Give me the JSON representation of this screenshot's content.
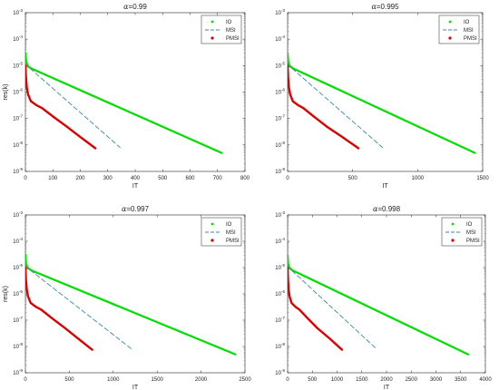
{
  "figure": {
    "background": "#ffffff"
  },
  "chart_data": [
    {
      "type": "line",
      "title_symbol": "α",
      "title_value": "=0.99",
      "xlabel": "IT",
      "ylabel": "res(k)",
      "y_scale": "log",
      "xlim": [
        0,
        800
      ],
      "xticks": [
        0,
        100,
        200,
        300,
        400,
        500,
        600,
        700,
        800
      ],
      "ylim_exp": [
        -9,
        -3
      ],
      "legend_position": "top-right",
      "series": [
        {
          "name": "IO",
          "color": "#00e000",
          "style": "dotted",
          "x": [
            0,
            3,
            8,
            15,
            25,
            715
          ],
          "y": [
            3e-05,
            1.4e-05,
            1e-05,
            8.5e-06,
            7.5e-06,
            5e-09
          ]
        },
        {
          "name": "MSI",
          "color": "#3a8aa8",
          "style": "dashed",
          "x": [
            0,
            3,
            8,
            15,
            345
          ],
          "y": [
            1.2e-05,
            9.5e-06,
            8.8e-06,
            8.2e-06,
            8e-09
          ]
        },
        {
          "name": "PMSI",
          "color": "#dd0000",
          "style": "solid",
          "x": [
            0,
            2,
            5,
            10,
            20,
            40,
            60,
            100,
            150,
            200,
            255
          ],
          "y": [
            1e-05,
            3.5e-06,
            1.5e-06,
            8e-07,
            4.5e-07,
            3.2e-07,
            2.5e-07,
            1.2e-07,
            5e-08,
            2e-08,
            7.5e-09
          ]
        }
      ]
    },
    {
      "type": "line",
      "title_symbol": "α",
      "title_value": "=0.995",
      "xlabel": "IT",
      "ylabel": "",
      "y_scale": "log",
      "xlim": [
        0,
        1500
      ],
      "xticks": [
        0,
        500,
        1000,
        1500
      ],
      "ylim_exp": [
        -9,
        -3
      ],
      "legend_position": "top-right",
      "series": [
        {
          "name": "IO",
          "color": "#00e000",
          "style": "dotted",
          "x": [
            0,
            5,
            15,
            30,
            50,
            1440
          ],
          "y": [
            3e-05,
            1.4e-05,
            1e-05,
            8.5e-06,
            7.5e-06,
            5e-09
          ]
        },
        {
          "name": "MSI",
          "color": "#3a8aa8",
          "style": "dashed",
          "x": [
            0,
            5,
            15,
            30,
            730
          ],
          "y": [
            1.2e-05,
            9.5e-06,
            8.8e-06,
            8.2e-06,
            8e-09
          ]
        },
        {
          "name": "PMSI",
          "color": "#dd0000",
          "style": "solid",
          "x": [
            0,
            4,
            10,
            20,
            40,
            80,
            120,
            200,
            300,
            420,
            545
          ],
          "y": [
            1e-05,
            3.5e-06,
            1.5e-06,
            8e-07,
            4.5e-07,
            3.2e-07,
            2.5e-07,
            1.2e-07,
            5e-08,
            2e-08,
            7.5e-09
          ]
        }
      ]
    },
    {
      "type": "line",
      "title_symbol": "α",
      "title_value": "=0.997",
      "xlabel": "IT",
      "ylabel": "res(k)",
      "y_scale": "log",
      "xlim": [
        0,
        2500
      ],
      "xticks": [
        0,
        500,
        1000,
        1500,
        2000,
        2500
      ],
      "ylim_exp": [
        -9,
        -3
      ],
      "legend_position": "top-right",
      "series": [
        {
          "name": "IO",
          "color": "#00e000",
          "style": "dotted",
          "x": [
            0,
            8,
            25,
            50,
            80,
            2390
          ],
          "y": [
            3e-05,
            1.4e-05,
            1e-05,
            8.5e-06,
            7.5e-06,
            5e-09
          ]
        },
        {
          "name": "MSI",
          "color": "#3a8aa8",
          "style": "dashed",
          "x": [
            0,
            8,
            25,
            50,
            1210
          ],
          "y": [
            1.2e-05,
            9.5e-06,
            8.8e-06,
            8.2e-06,
            8e-09
          ]
        },
        {
          "name": "PMSI",
          "color": "#dd0000",
          "style": "solid",
          "x": [
            0,
            6,
            15,
            30,
            60,
            120,
            180,
            300,
            450,
            600,
            760
          ],
          "y": [
            1e-05,
            3.5e-06,
            1.5e-06,
            8e-07,
            4.5e-07,
            3.2e-07,
            2.5e-07,
            1.2e-07,
            5e-08,
            2e-08,
            7.5e-09
          ]
        }
      ]
    },
    {
      "type": "line",
      "title_symbol": "α",
      "title_value": "=0.998",
      "xlabel": "IT",
      "ylabel": "",
      "y_scale": "log",
      "xlim": [
        0,
        4000
      ],
      "xticks": [
        0,
        500,
        1000,
        1500,
        2000,
        2500,
        3000,
        3500,
        4000
      ],
      "ylim_exp": [
        -9,
        -3
      ],
      "legend_position": "top-right",
      "series": [
        {
          "name": "IO",
          "color": "#00e000",
          "style": "dotted",
          "x": [
            0,
            12,
            35,
            70,
            120,
            3650
          ],
          "y": [
            3e-05,
            1.4e-05,
            1e-05,
            8.5e-06,
            7.5e-06,
            5e-09
          ]
        },
        {
          "name": "MSI",
          "color": "#3a8aa8",
          "style": "dashed",
          "x": [
            0,
            12,
            35,
            70,
            1800
          ],
          "y": [
            1.2e-05,
            9.5e-06,
            8.8e-06,
            8.2e-06,
            8e-09
          ]
        },
        {
          "name": "PMSI",
          "color": "#dd0000",
          "style": "solid",
          "x": [
            0,
            8,
            20,
            40,
            80,
            160,
            240,
            400,
            600,
            850,
            1100
          ],
          "y": [
            1e-05,
            3.5e-06,
            1.5e-06,
            8e-07,
            4.5e-07,
            3.2e-07,
            2.5e-07,
            1.2e-07,
            5e-08,
            2e-08,
            7.5e-09
          ]
        }
      ]
    }
  ]
}
